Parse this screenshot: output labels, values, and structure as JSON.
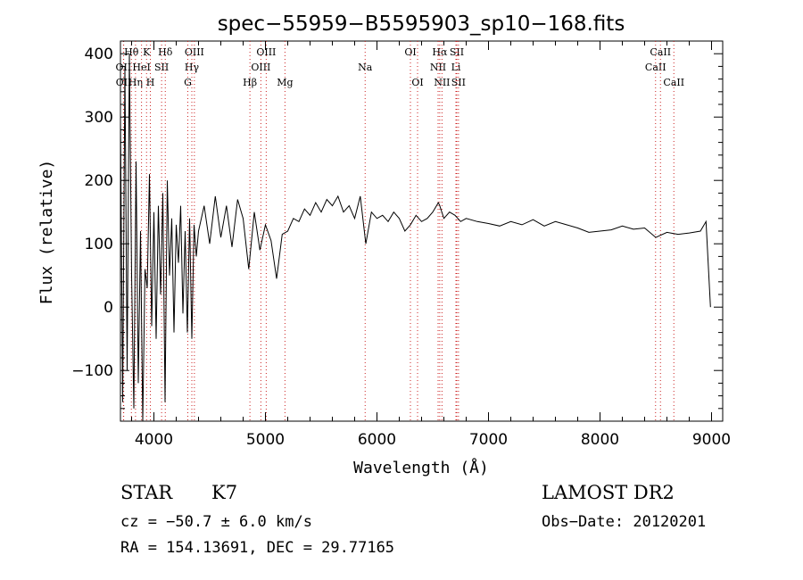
{
  "chart_data": {
    "type": "line",
    "title": "spec−55959−B5595903_sp10−168.fits",
    "xlabel": "Wavelength (Å)",
    "ylabel": "Flux (relative)",
    "xlim": [
      3700,
      9100
    ],
    "ylim": [
      -180,
      420
    ],
    "xticks": [
      4000,
      5000,
      6000,
      7000,
      8000,
      9000
    ],
    "yticks": [
      -100,
      0,
      100,
      200,
      300,
      400
    ],
    "ytick_labels": [
      "−100",
      "0",
      "100",
      "200",
      "300",
      "400"
    ],
    "grid": false,
    "series": [
      {
        "x": [
          3700,
          3720,
          3740,
          3760,
          3780,
          3800,
          3820,
          3840,
          3860,
          3880,
          3900,
          3920,
          3940,
          3960,
          3980,
          4000,
          4020,
          4040,
          4060,
          4080,
          4100,
          4120,
          4140,
          4160,
          4180,
          4200,
          4220,
          4240,
          4260,
          4280,
          4300,
          4320,
          4340,
          4360,
          4380,
          4400,
          4450,
          4500,
          4550,
          4600,
          4650,
          4700,
          4750,
          4800,
          4850,
          4900,
          4950,
          5000,
          5050,
          5100,
          5150,
          5200,
          5250,
          5300,
          5350,
          5400,
          5450,
          5500,
          5550,
          5600,
          5650,
          5700,
          5750,
          5800,
          5850,
          5900,
          5950,
          6000,
          6050,
          6100,
          6150,
          6200,
          6250,
          6300,
          6350,
          6400,
          6450,
          6500,
          6550,
          6563,
          6600,
          6650,
          6700,
          6750,
          6800,
          6900,
          7000,
          7100,
          7200,
          7300,
          7400,
          7500,
          7600,
          7700,
          7800,
          7900,
          8000,
          8100,
          8200,
          8300,
          8400,
          8500,
          8600,
          8700,
          8800,
          8900,
          8950,
          8990
        ],
        "y": [
          300,
          -150,
          380,
          -100,
          400,
          50,
          -160,
          230,
          -120,
          120,
          -180,
          60,
          30,
          210,
          -30,
          150,
          -50,
          160,
          20,
          180,
          -150,
          200,
          50,
          140,
          -40,
          130,
          70,
          160,
          -10,
          120,
          -40,
          140,
          -50,
          130,
          80,
          120,
          160,
          100,
          175,
          110,
          160,
          95,
          170,
          140,
          60,
          150,
          90,
          130,
          105,
          45,
          115,
          120,
          140,
          135,
          155,
          145,
          165,
          150,
          170,
          160,
          175,
          150,
          160,
          140,
          175,
          100,
          150,
          140,
          145,
          135,
          150,
          140,
          120,
          130,
          145,
          135,
          140,
          150,
          165,
          160,
          140,
          150,
          145,
          135,
          140,
          135,
          132,
          128,
          135,
          130,
          138,
          128,
          135,
          130,
          125,
          118,
          120,
          122,
          128,
          123,
          125,
          110,
          118,
          115,
          117,
          120,
          135,
          0
        ]
      }
    ],
    "lines": [
      {
        "label": "OII",
        "x": 3727,
        "row": 2
      },
      {
        "label": "OII",
        "x": 3729,
        "row": 3
      },
      {
        "label": "Hθ",
        "x": 3798,
        "row": 1
      },
      {
        "label": "Hη",
        "x": 3835,
        "row": 3
      },
      {
        "label": "K",
        "x": 3934,
        "row": 1
      },
      {
        "label": "HeI",
        "x": 3889,
        "row": 2
      },
      {
        "label": "H",
        "x": 3968,
        "row": 3
      },
      {
        "label": "SII",
        "x": 4069,
        "row": 2
      },
      {
        "label": "Hδ",
        "x": 4102,
        "row": 1
      },
      {
        "label": "OIII",
        "x": 4363,
        "row": 1
      },
      {
        "label": "Hγ",
        "x": 4340,
        "row": 2
      },
      {
        "label": "G",
        "x": 4304,
        "row": 3
      },
      {
        "label": "Hβ",
        "x": 4861,
        "row": 3
      },
      {
        "label": "OIII",
        "x": 4959,
        "row": 2
      },
      {
        "label": "OIII",
        "x": 5007,
        "row": 1
      },
      {
        "label": "Mg",
        "x": 5175,
        "row": 3
      },
      {
        "label": "Na",
        "x": 5894,
        "row": 2
      },
      {
        "label": "OI",
        "x": 6300,
        "row": 1
      },
      {
        "label": "OI",
        "x": 6364,
        "row": 3
      },
      {
        "label": "Hα",
        "x": 6563,
        "row": 1
      },
      {
        "label": "NII",
        "x": 6548,
        "row": 2
      },
      {
        "label": "NII",
        "x": 6583,
        "row": 3
      },
      {
        "label": "SII",
        "x": 6716,
        "row": 1
      },
      {
        "label": "Li",
        "x": 6708,
        "row": 2
      },
      {
        "label": "SII",
        "x": 6731,
        "row": 3
      },
      {
        "label": "CaII",
        "x": 8498,
        "row": 2
      },
      {
        "label": "CaII",
        "x": 8542,
        "row": 1
      },
      {
        "label": "CaII",
        "x": 8662,
        "row": 3
      }
    ]
  },
  "info": {
    "class_label": "STAR",
    "subclass": "K7",
    "survey": "LAMOST DR2",
    "redshift": "cz = −50.7 ± 6.0 km/s",
    "obs_date": "Obs−Date: 20120201",
    "coords": "RA = 154.13691, DEC =  29.77165"
  },
  "colors": {
    "line": "#000000",
    "marker": "#cc2222"
  }
}
